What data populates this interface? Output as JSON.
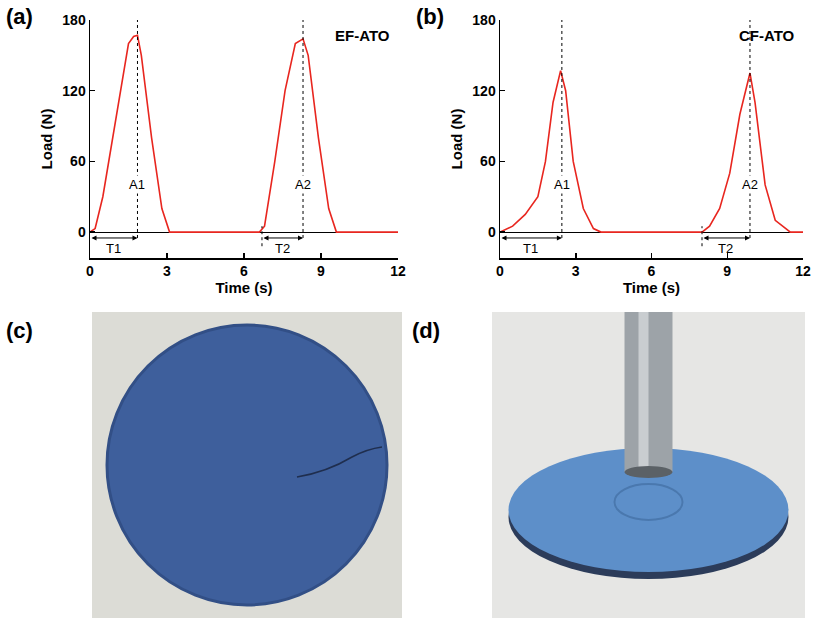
{
  "chart_data": [
    {
      "type": "line",
      "panel_label": "(a)",
      "title": "EF-ATO",
      "x_label": "Time (s)",
      "y_label": "Load (N)",
      "xlim": [
        0,
        12
      ],
      "xticks": [
        0,
        3,
        6,
        9,
        12
      ],
      "ylim": [
        -22,
        180
      ],
      "yticks": [
        0,
        60,
        120,
        180
      ],
      "series": [
        {
          "name": "EF-ATO",
          "color": "#e8261f",
          "x": [
            0,
            0.2,
            0.5,
            1.0,
            1.5,
            1.7,
            1.85,
            2.0,
            2.4,
            2.8,
            3.1,
            6.6,
            6.8,
            7.2,
            7.6,
            8.0,
            8.3,
            8.5,
            8.9,
            9.3,
            9.6,
            12
          ],
          "values": [
            0,
            3,
            30,
            95,
            160,
            166,
            167,
            150,
            80,
            20,
            0,
            0,
            5,
            60,
            120,
            160,
            164,
            150,
            80,
            20,
            0,
            0
          ]
        }
      ],
      "dotted_lines": [
        {
          "x": 1.85,
          "y": [
            -5,
            180
          ]
        },
        {
          "x": 8.3,
          "y": [
            -5,
            180
          ]
        },
        {
          "x": 6.7,
          "y": [
            -12,
            5
          ]
        }
      ],
      "annotations": [
        {
          "text": "A1",
          "x": 1.85,
          "y": 40
        },
        {
          "text": "A2",
          "x": 8.3,
          "y": 40
        }
      ],
      "intervals": [
        {
          "label": "T1",
          "from": 0,
          "to": 1.85,
          "y": -5
        },
        {
          "label": "T2",
          "from": 6.7,
          "to": 8.3,
          "y": -5
        }
      ]
    },
    {
      "type": "line",
      "panel_label": "(b)",
      "title": "CF-ATO",
      "x_label": "Time (s)",
      "y_label": "Load (N)",
      "xlim": [
        0,
        12
      ],
      "xticks": [
        0,
        3,
        6,
        9,
        12
      ],
      "ylim": [
        -22,
        180
      ],
      "yticks": [
        0,
        60,
        120,
        180
      ],
      "series": [
        {
          "name": "CF-ATO",
          "color": "#e8261f",
          "x": [
            0,
            0.5,
            1.0,
            1.5,
            1.8,
            2.1,
            2.4,
            2.6,
            2.9,
            3.3,
            3.7,
            4.0,
            8.0,
            8.3,
            8.7,
            9.1,
            9.5,
            9.9,
            10.1,
            10.5,
            10.9,
            11.5,
            12
          ],
          "values": [
            0,
            5,
            15,
            30,
            60,
            110,
            137,
            120,
            60,
            20,
            3,
            0,
            0,
            5,
            20,
            50,
            100,
            135,
            110,
            40,
            10,
            0,
            0
          ]
        }
      ],
      "dotted_lines": [
        {
          "x": 2.45,
          "y": [
            -5,
            180
          ]
        },
        {
          "x": 9.9,
          "y": [
            -5,
            180
          ]
        },
        {
          "x": 8.0,
          "y": [
            -12,
            5
          ]
        }
      ],
      "annotations": [
        {
          "text": "A1",
          "x": 2.45,
          "y": 40
        },
        {
          "text": "A2",
          "x": 9.9,
          "y": 40
        }
      ],
      "intervals": [
        {
          "label": "T1",
          "from": 0,
          "to": 2.45,
          "y": -5
        },
        {
          "label": "T2",
          "from": 8.0,
          "to": 9.9,
          "y": -5
        }
      ]
    }
  ],
  "photos": [
    {
      "panel_label": "(c)"
    },
    {
      "panel_label": "(d)"
    }
  ]
}
